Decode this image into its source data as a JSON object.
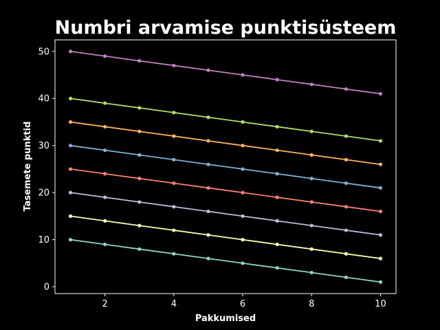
{
  "chart_data": {
    "type": "line",
    "title": "Numbri arvamise punktisüsteem",
    "xlabel": "Pakkumised",
    "ylabel": "Tasemete punktid",
    "x": [
      1,
      2,
      3,
      4,
      5,
      6,
      7,
      8,
      9,
      10
    ],
    "xlim": [
      0.55,
      10.45
    ],
    "ylim": [
      -1.45,
      52.45
    ],
    "xticks": [
      2,
      4,
      6,
      8,
      10
    ],
    "yticks": [
      0,
      10,
      20,
      30,
      40,
      50
    ],
    "grid": false,
    "legend": "none",
    "series": [
      {
        "color": "#8dd3c7",
        "values": [
          10,
          9,
          8,
          7,
          6,
          5,
          4,
          3,
          2,
          1
        ]
      },
      {
        "color": "#feffb3",
        "values": [
          15,
          14,
          13,
          12,
          11,
          10,
          9,
          8,
          7,
          6
        ]
      },
      {
        "color": "#bfbbd9",
        "values": [
          20,
          19,
          18,
          17,
          16,
          15,
          14,
          13,
          12,
          11
        ]
      },
      {
        "color": "#fa8174",
        "values": [
          25,
          24,
          23,
          22,
          21,
          20,
          19,
          18,
          17,
          16
        ]
      },
      {
        "color": "#81b1d2",
        "values": [
          30,
          29,
          28,
          27,
          26,
          25,
          24,
          23,
          22,
          21
        ]
      },
      {
        "color": "#fdb462",
        "values": [
          35,
          34,
          33,
          32,
          31,
          30,
          29,
          28,
          27,
          26
        ]
      },
      {
        "color": "#b3de69",
        "values": [
          40,
          39,
          38,
          37,
          36,
          35,
          34,
          33,
          32,
          31
        ]
      },
      {
        "color": "#bc82bd",
        "values": [
          50,
          49,
          48,
          47,
          46,
          45,
          44,
          43,
          42,
          41
        ]
      }
    ]
  }
}
